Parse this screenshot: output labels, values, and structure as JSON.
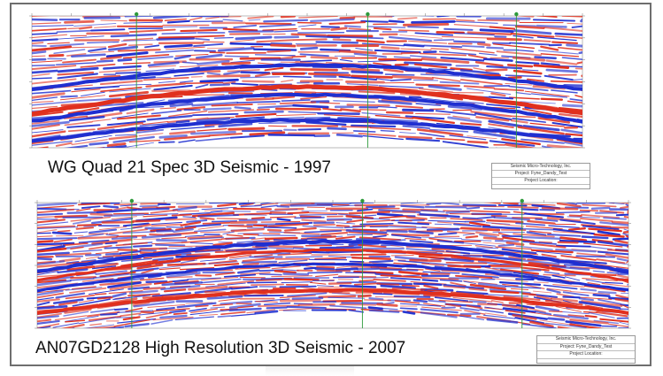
{
  "panels": [
    {
      "id": "top",
      "caption": "WG Quad 21 Spec 3D Seismic - 1997",
      "legend": {
        "company": "Seismic Micro-Technology, Inc.",
        "project": "Project: Fyne_Dandy_Test",
        "location": "Project Location:",
        "footer": ""
      },
      "colors": {
        "positive": "#1f2fd0",
        "negative": "#e0301e",
        "marker_line": "#2d9a3a"
      }
    },
    {
      "id": "bottom",
      "caption": "AN07GD2128 High Resolution 3D Seismic - 2007",
      "legend": {
        "company": "Seismic Micro-Technology, Inc.",
        "project": "Project: Fyne_Dandy_Test",
        "location": "Project Location:",
        "footer": ""
      },
      "colors": {
        "positive": "#1f2fd0",
        "negative": "#e0301e",
        "marker_line": "#2d9a3a"
      }
    }
  ]
}
